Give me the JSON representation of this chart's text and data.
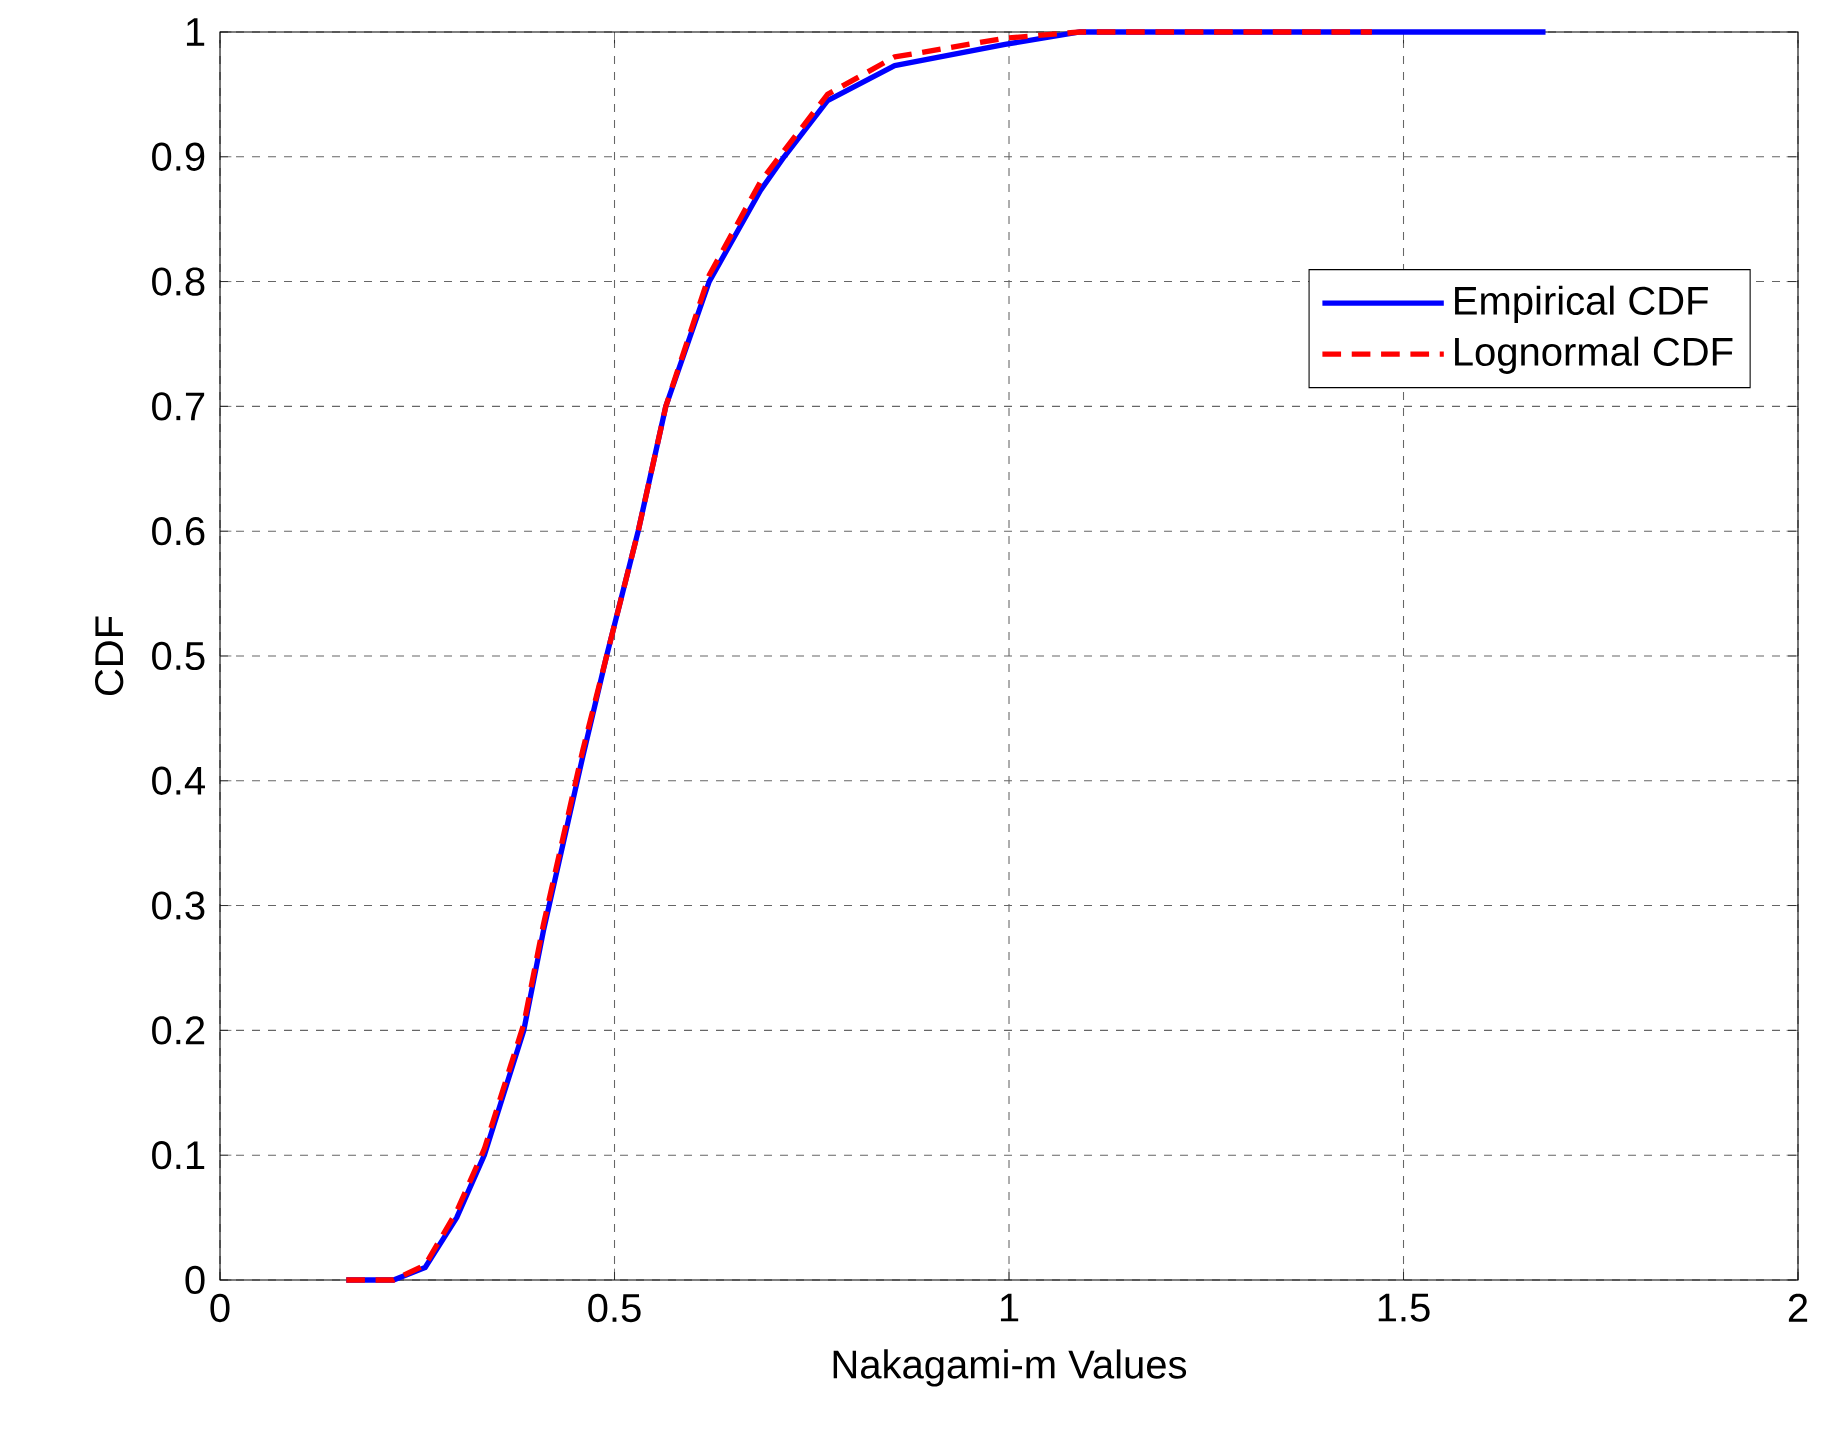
{
  "chart_data": {
    "type": "line",
    "xlabel": "Nakagami-m Values",
    "ylabel": "CDF",
    "xlim": [
      0,
      2
    ],
    "ylim": [
      0,
      1
    ],
    "xticks": [
      0,
      0.5,
      1,
      1.5,
      2
    ],
    "yticks": [
      0,
      0.1,
      0.2,
      0.3,
      0.4,
      0.5,
      0.6,
      0.7,
      0.8,
      0.9,
      1
    ],
    "grid": true,
    "legend": "top right",
    "series": [
      {
        "name": "Empirical CDF",
        "color": "#0000ff",
        "line_style": "solid",
        "x": [
          0.16,
          0.22,
          0.26,
          0.3,
          0.335,
          0.36,
          0.385,
          0.41,
          0.435,
          0.46,
          0.49,
          0.53,
          0.565,
          0.62,
          0.685,
          0.715,
          0.77,
          0.855,
          0.995,
          1.09,
          1.68
        ],
        "values": [
          0,
          0,
          0.01,
          0.05,
          0.1,
          0.15,
          0.2,
          0.28,
          0.35,
          0.42,
          0.5,
          0.6,
          0.7,
          0.8,
          0.873,
          0.9,
          0.945,
          0.973,
          0.99,
          1,
          1
        ]
      },
      {
        "name": "Lognormal CDF",
        "color": "#ff0000",
        "line_style": "dashed",
        "x": [
          0.16,
          0.22,
          0.26,
          0.3,
          0.335,
          0.36,
          0.385,
          0.41,
          0.435,
          0.46,
          0.49,
          0.53,
          0.565,
          0.62,
          0.685,
          0.715,
          0.77,
          0.855,
          0.995,
          1.09,
          1.46
        ],
        "values": [
          0,
          0,
          0.012,
          0.055,
          0.105,
          0.155,
          0.205,
          0.285,
          0.355,
          0.425,
          0.5,
          0.6,
          0.7,
          0.805,
          0.88,
          0.905,
          0.95,
          0.98,
          0.995,
          1,
          1
        ]
      }
    ]
  }
}
